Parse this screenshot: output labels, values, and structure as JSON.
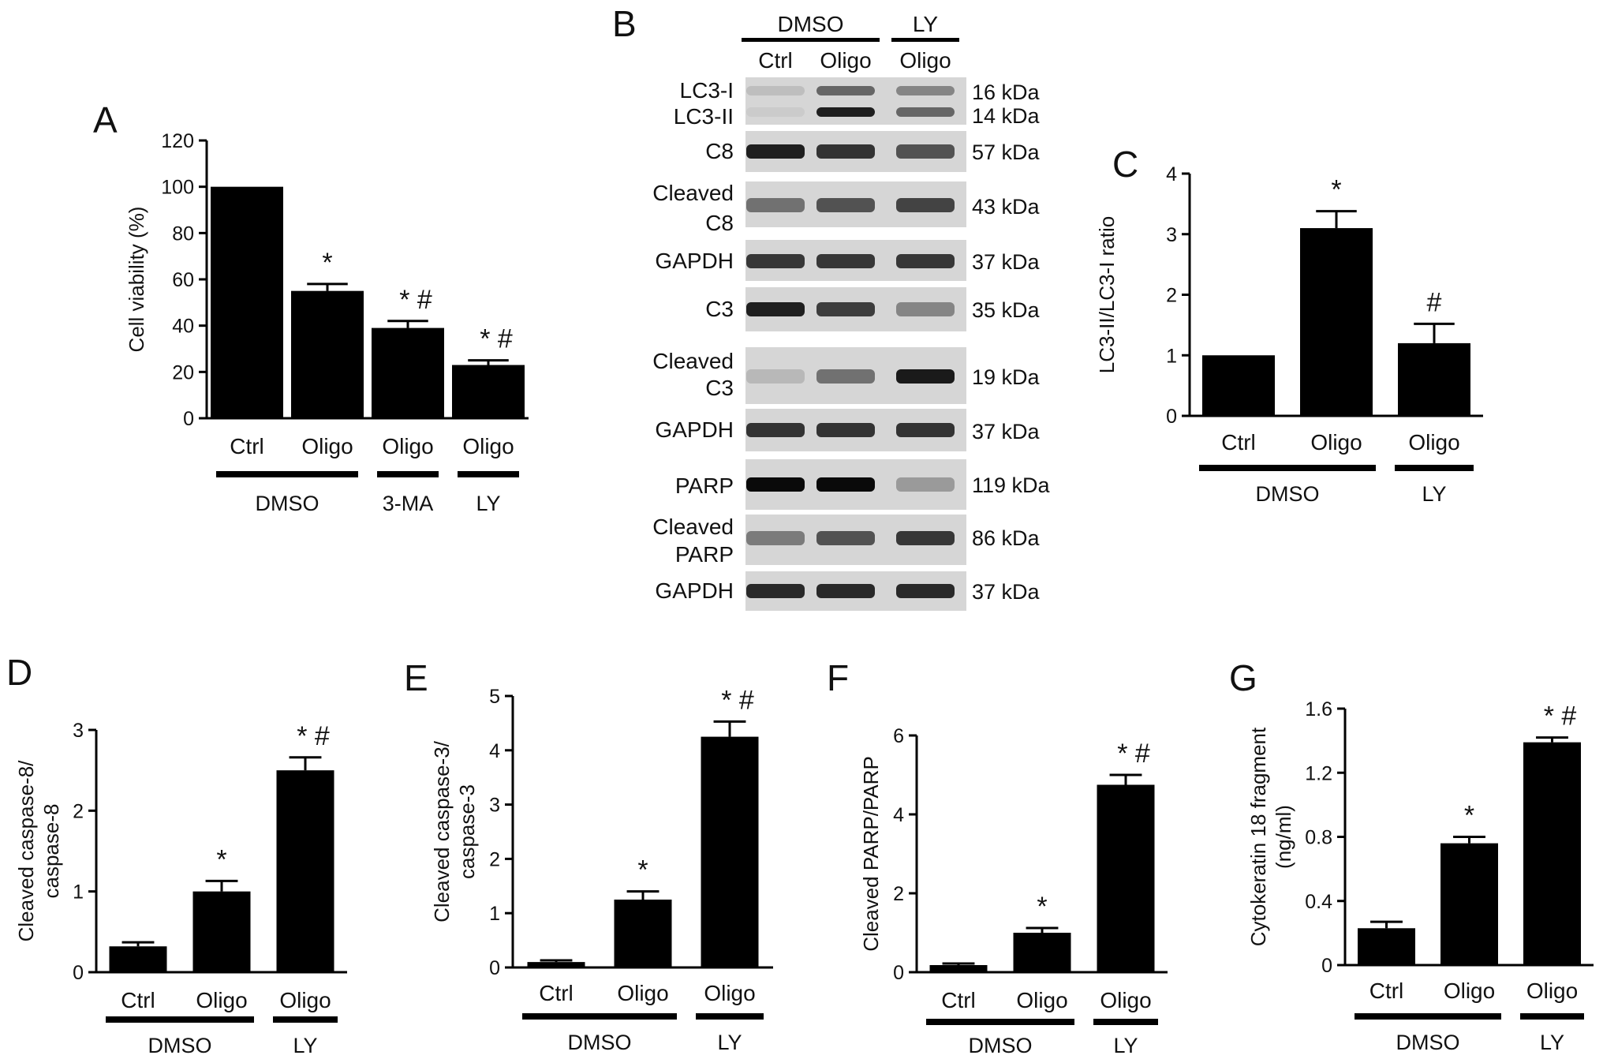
{
  "panel_b": {
    "letter": "B",
    "groups": [
      {
        "label": "DMSO",
        "col_start": 0,
        "col_end": 1
      },
      {
        "label": "LY",
        "col_start": 2,
        "col_end": 2
      }
    ],
    "lanes": [
      "Ctrl",
      "Oligo",
      "Oligo"
    ],
    "blots": [
      {
        "labels": [
          "LC3-I",
          "LC3-II"
        ],
        "kda": [
          "16 kDa",
          "14 kDa"
        ],
        "bands": [
          [
            0.12,
            0.55,
            0.4
          ],
          [
            0.06,
            0.9,
            0.55
          ]
        ]
      },
      {
        "labels": [
          "C8"
        ],
        "kda": [
          "57 kDa"
        ],
        "bands": [
          [
            0.9,
            0.8,
            0.65
          ]
        ]
      },
      {
        "labels": [
          "Cleaved",
          "C8"
        ],
        "kda": [
          "43 kDa"
        ],
        "bands": [
          [
            0.5,
            0.65,
            0.72
          ]
        ]
      },
      {
        "labels": [
          "GAPDH"
        ],
        "kda": [
          "37 kDa"
        ],
        "bands": [
          [
            0.78,
            0.78,
            0.78
          ]
        ]
      },
      {
        "labels": [
          "C3"
        ],
        "kda": [
          "35 kDa"
        ],
        "bands": [
          [
            0.9,
            0.75,
            0.4
          ]
        ]
      },
      {
        "labels": [
          "Cleaved",
          "C3"
        ],
        "kda": [
          "19 kDa"
        ],
        "bands": [
          [
            0.15,
            0.5,
            0.92
          ]
        ]
      },
      {
        "labels": [
          "GAPDH"
        ],
        "kda": [
          "37 kDa"
        ],
        "bands": [
          [
            0.8,
            0.8,
            0.8
          ]
        ]
      },
      {
        "labels": [
          "PARP"
        ],
        "kda": [
          "119 kDa"
        ],
        "bands": [
          [
            1.0,
            1.0,
            0.3
          ]
        ]
      },
      {
        "labels": [
          "Cleaved",
          "PARP"
        ],
        "kda": [
          "86 kDa"
        ],
        "bands": [
          [
            0.45,
            0.65,
            0.78
          ]
        ]
      },
      {
        "labels": [
          "GAPDH"
        ],
        "kda": [
          "37 kDa"
        ],
        "bands": [
          [
            0.85,
            0.85,
            0.85
          ]
        ]
      }
    ]
  },
  "chart_data": [
    {
      "id": "A",
      "letter": "A",
      "type": "bar",
      "ylabel": "Cell viability (%)",
      "ylim": [
        0,
        120
      ],
      "yticks": [
        "0",
        "20",
        "40",
        "60",
        "80",
        "100",
        "120"
      ],
      "categories": [
        "Ctrl",
        "Oligo",
        "Oligo",
        "Oligo"
      ],
      "values": [
        100,
        55,
        39,
        23
      ],
      "errors": [
        0,
        3,
        3,
        2
      ],
      "significance": [
        [],
        [
          "*"
        ],
        [
          "*",
          "#"
        ],
        [
          "*",
          "#"
        ]
      ],
      "groups": [
        {
          "label": "DMSO",
          "start": 0,
          "end": 1
        },
        {
          "label": "3-MA",
          "start": 2,
          "end": 2
        },
        {
          "label": "LY",
          "start": 3,
          "end": 3
        }
      ]
    },
    {
      "id": "C",
      "letter": "C",
      "type": "bar",
      "ylabel": "LC3-II/LC3-I ratio",
      "ylim": [
        0,
        4
      ],
      "yticks": [
        "0",
        "1",
        "2",
        "3",
        "4"
      ],
      "categories": [
        "Ctrl",
        "Oligo",
        "Oligo"
      ],
      "values": [
        1.0,
        3.1,
        1.2
      ],
      "errors": [
        0,
        0.28,
        0.32
      ],
      "significance": [
        [],
        [
          "*"
        ],
        [
          "#"
        ]
      ],
      "groups": [
        {
          "label": "DMSO",
          "start": 0,
          "end": 1
        },
        {
          "label": "LY",
          "start": 2,
          "end": 2
        }
      ]
    },
    {
      "id": "D",
      "letter": "D",
      "type": "bar",
      "ylabel": [
        "Cleaved caspase-8/",
        "caspase-8"
      ],
      "ylim": [
        0,
        3
      ],
      "yticks": [
        "0",
        "1",
        "2",
        "3"
      ],
      "categories": [
        "Ctrl",
        "Oligo",
        "Oligo"
      ],
      "values": [
        0.32,
        1.0,
        2.5
      ],
      "errors": [
        0.05,
        0.13,
        0.16
      ],
      "significance": [
        [],
        [
          "*"
        ],
        [
          "*",
          "#"
        ]
      ],
      "groups": [
        {
          "label": "DMSO",
          "start": 0,
          "end": 1
        },
        {
          "label": "LY",
          "start": 2,
          "end": 2
        }
      ]
    },
    {
      "id": "E",
      "letter": "E",
      "type": "bar",
      "ylabel": [
        "Cleaved caspase-3/",
        "caspase-3"
      ],
      "ylim": [
        0,
        5
      ],
      "yticks": [
        "0",
        "1",
        "2",
        "3",
        "4",
        "5"
      ],
      "categories": [
        "Ctrl",
        "Oligo",
        "Oligo"
      ],
      "values": [
        0.1,
        1.25,
        4.25
      ],
      "errors": [
        0.03,
        0.15,
        0.28
      ],
      "significance": [
        [],
        [
          "*"
        ],
        [
          "*",
          "#"
        ]
      ],
      "groups": [
        {
          "label": "DMSO",
          "start": 0,
          "end": 1
        },
        {
          "label": "LY",
          "start": 2,
          "end": 2
        }
      ]
    },
    {
      "id": "F",
      "letter": "F",
      "type": "bar",
      "ylabel": "Cleaved PARP/PARP",
      "ylim": [
        0,
        6
      ],
      "yticks": [
        "0",
        "2",
        "4",
        "6"
      ],
      "categories": [
        "Ctrl",
        "Oligo",
        "Oligo"
      ],
      "values": [
        0.18,
        1.0,
        4.75
      ],
      "errors": [
        0.04,
        0.12,
        0.25
      ],
      "significance": [
        [],
        [
          "*"
        ],
        [
          "*",
          "#"
        ]
      ],
      "groups": [
        {
          "label": "DMSO",
          "start": 0,
          "end": 1
        },
        {
          "label": "LY",
          "start": 2,
          "end": 2
        }
      ]
    },
    {
      "id": "G",
      "letter": "G",
      "type": "bar",
      "ylabel": [
        "Cytokeratin 18 fragment",
        "(ng/ml)"
      ],
      "ylim": [
        0,
        1.6
      ],
      "yticks": [
        "0",
        "0.4",
        "0.8",
        "1.2",
        "1.6"
      ],
      "categories": [
        "Ctrl",
        "Oligo",
        "Oligo"
      ],
      "values": [
        0.23,
        0.76,
        1.39
      ],
      "errors": [
        0.04,
        0.04,
        0.03
      ],
      "significance": [
        [],
        [
          "*"
        ],
        [
          "*",
          "#"
        ]
      ],
      "groups": [
        {
          "label": "DMSO",
          "start": 0,
          "end": 1
        },
        {
          "label": "LY",
          "start": 2,
          "end": 2
        }
      ]
    }
  ]
}
